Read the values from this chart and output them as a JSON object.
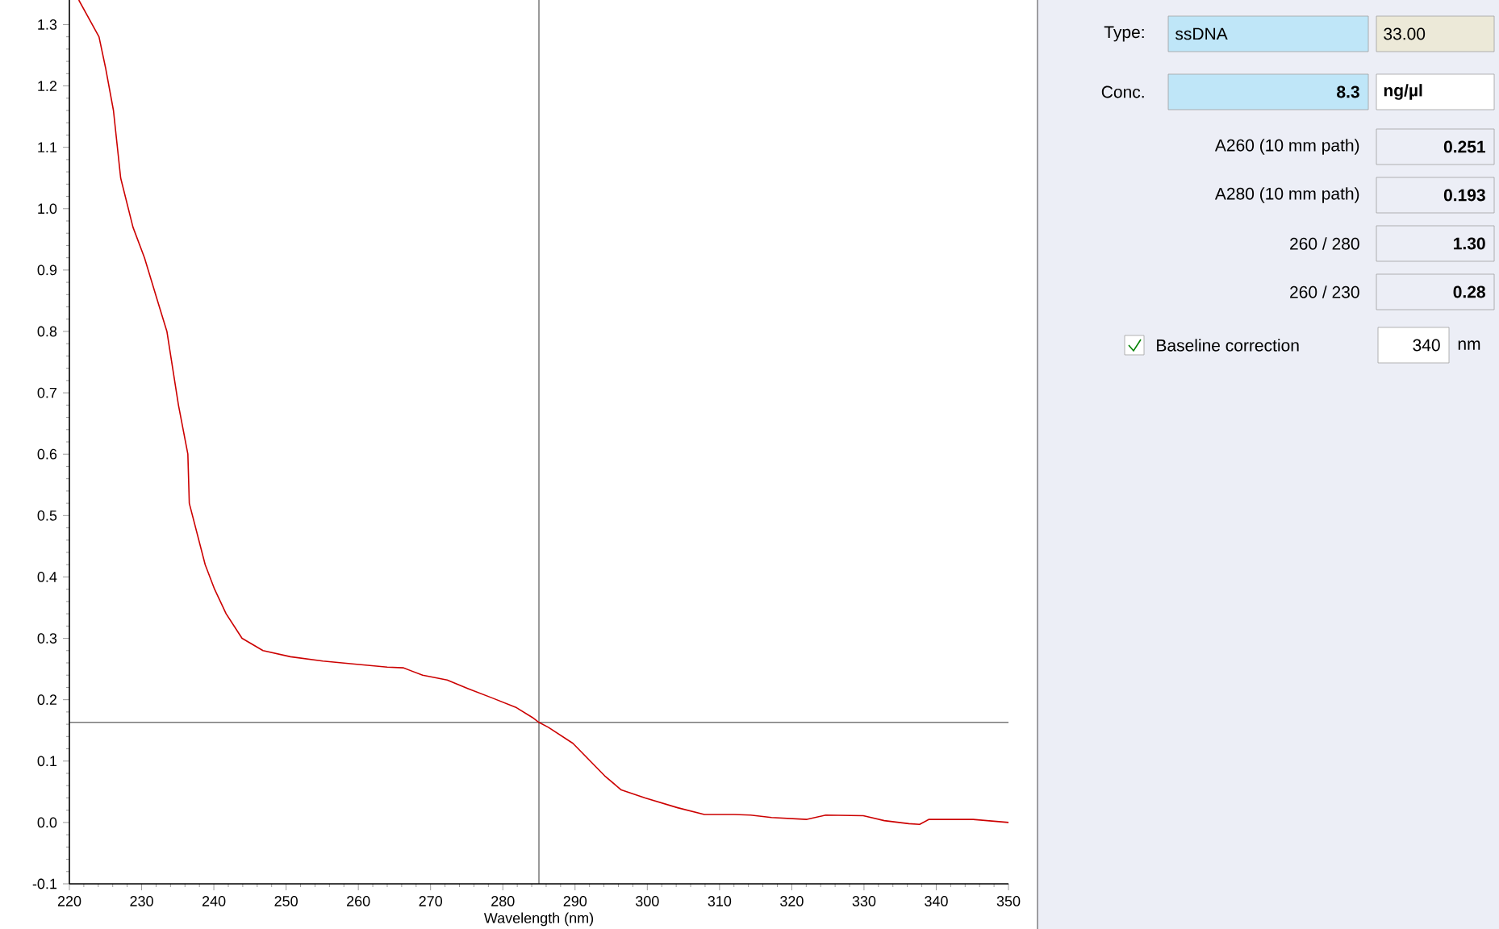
{
  "chart_data": [
    {
      "type": "line",
      "xlabel": "Wavelength (nm)",
      "xlim": [
        220,
        350
      ],
      "xticks": [
        220,
        230,
        240,
        250,
        260,
        270,
        280,
        290,
        300,
        310,
        320,
        330,
        340,
        350
      ],
      "ylim": [
        -0.1,
        1.34
      ],
      "yticks": [
        -0.1,
        {
          "value": 0,
          "label": "0.0"
        },
        0.1,
        0.2,
        0.3,
        0.4,
        0.5,
        0.6,
        0.7,
        0.8,
        0.9,
        {
          "value": 1,
          "label": "1.0"
        },
        1.1,
        1.2,
        1.3
      ],
      "grid": false,
      "marker": "none",
      "line_style": "solid",
      "ref_lines": [
        {
          "axis": "x",
          "value": 285,
          "color": "#000000"
        },
        {
          "axis": "y",
          "value": 0.163,
          "color": "#000000"
        }
      ],
      "series": [
        {
          "color": "#cc0000",
          "x": [
            221.3,
            224.1,
            225.0,
            226.1,
            227.1,
            228.8,
            230.4,
            232.2,
            233.5,
            233.9,
            235.1,
            236.4,
            236.6,
            238.8,
            240.1,
            241.7,
            243.9,
            246.8,
            250.6,
            255.1,
            259.5,
            264.0,
            266.2,
            268.9,
            272.3,
            275.2,
            278.5,
            281.9,
            284.1,
            285.0,
            286.3,
            289.7,
            294.1,
            296.4,
            299.7,
            304.2,
            307.9,
            312.0,
            314.3,
            317.2,
            322.1,
            324.7,
            329.9,
            332.8,
            336.2,
            337.7,
            339.0,
            345.1,
            350.0
          ],
          "values": [
            1.34,
            1.28,
            1.23,
            1.16,
            1.05,
            0.97,
            0.92,
            0.85,
            0.8,
            0.77,
            0.68,
            0.6,
            0.52,
            0.42,
            0.38,
            0.34,
            0.3,
            0.28,
            0.27,
            0.263,
            0.258,
            0.253,
            0.252,
            0.24,
            0.232,
            0.218,
            0.203,
            0.187,
            0.171,
            0.163,
            0.155,
            0.129,
            0.076,
            0.053,
            0.04,
            0.024,
            0.013,
            0.013,
            0.012,
            0.008,
            0.005,
            0.012,
            0.011,
            0.003,
            -0.002,
            -0.003,
            0.005,
            0.005,
            0.0
          ]
        }
      ]
    },
    {
      "type": "other",
      "annotations": [
        "Type:",
        "ssDNA",
        "33.00",
        "Conc.",
        "8.3",
        "ng/µl",
        "A260 (10 mm path)",
        "0.251",
        "A280 (10 mm path)",
        "0.193",
        "260 / 280",
        "1.30",
        "260 / 230",
        "0.28",
        "Baseline correction",
        "340",
        "nm"
      ]
    }
  ]
}
